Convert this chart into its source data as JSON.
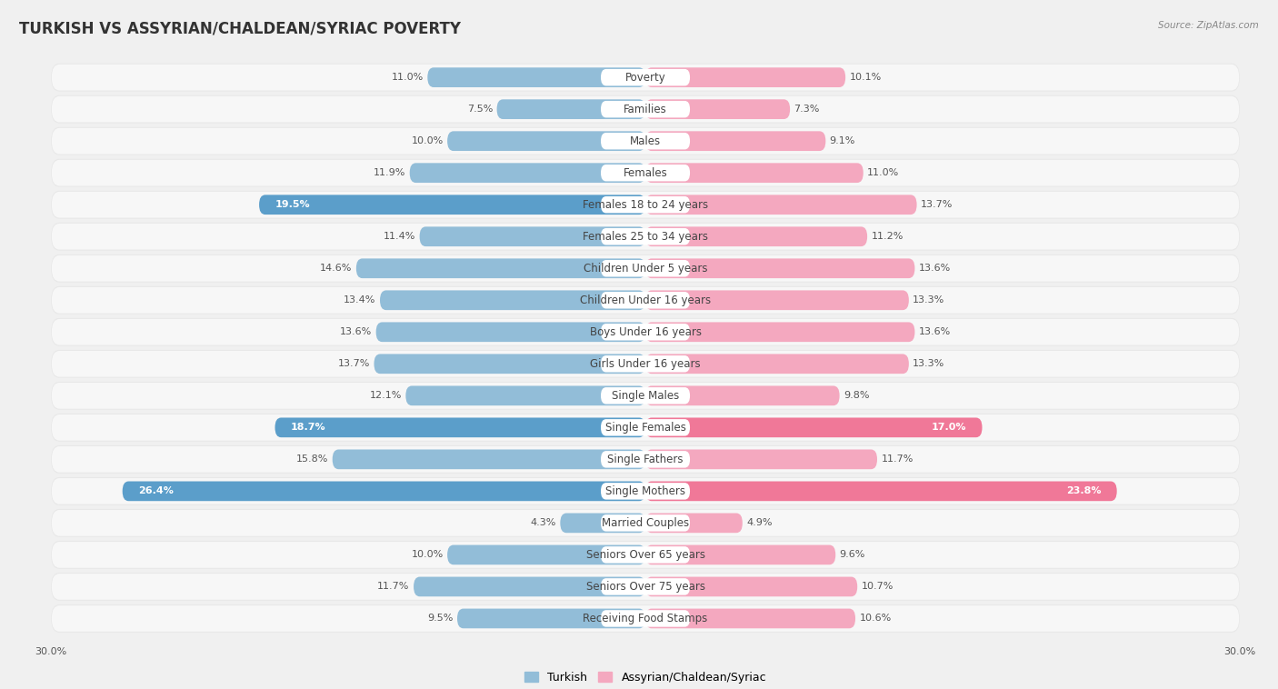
{
  "title": "TURKISH VS ASSYRIAN/CHALDEAN/SYRIAC POVERTY",
  "source": "Source: ZipAtlas.com",
  "categories": [
    "Poverty",
    "Families",
    "Males",
    "Females",
    "Females 18 to 24 years",
    "Females 25 to 34 years",
    "Children Under 5 years",
    "Children Under 16 years",
    "Boys Under 16 years",
    "Girls Under 16 years",
    "Single Males",
    "Single Females",
    "Single Fathers",
    "Single Mothers",
    "Married Couples",
    "Seniors Over 65 years",
    "Seniors Over 75 years",
    "Receiving Food Stamps"
  ],
  "turkish_values": [
    11.0,
    7.5,
    10.0,
    11.9,
    19.5,
    11.4,
    14.6,
    13.4,
    13.6,
    13.7,
    12.1,
    18.7,
    15.8,
    26.4,
    4.3,
    10.0,
    11.7,
    9.5
  ],
  "assyrian_values": [
    10.1,
    7.3,
    9.1,
    11.0,
    13.7,
    11.2,
    13.6,
    13.3,
    13.6,
    13.3,
    9.8,
    17.0,
    11.7,
    23.8,
    4.9,
    9.6,
    10.7,
    10.6
  ],
  "turkish_color": "#92bdd8",
  "assyrian_color": "#f4a8bf",
  "highlight_turkish": [
    4,
    11,
    13
  ],
  "highlight_assyrian": [
    11,
    13
  ],
  "turkish_highlight_color": "#5b9eca",
  "assyrian_highlight_color": "#f07898",
  "xlim": 30.0,
  "background_color": "#f0f0f0",
  "row_bg_color": "#e8e8e8",
  "row_inner_color": "#f7f7f7",
  "title_fontsize": 12,
  "label_fontsize": 8.5,
  "value_fontsize": 8
}
